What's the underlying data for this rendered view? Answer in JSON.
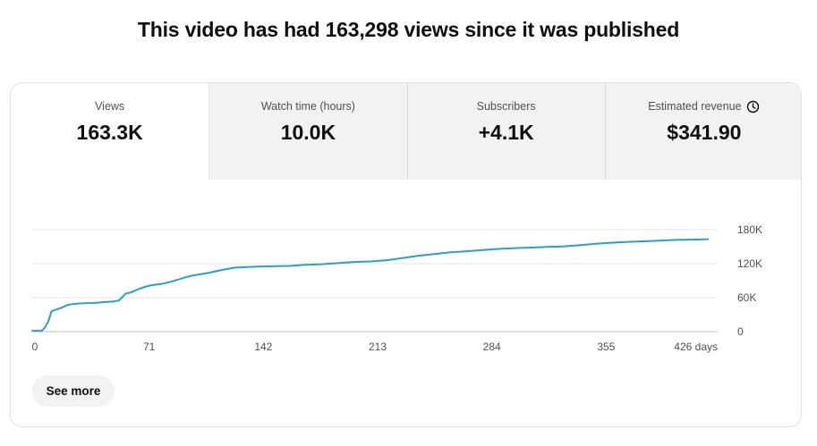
{
  "headline": "This video has had 163,298 views since it was published",
  "tabs": [
    {
      "label": "Views",
      "value": "163.3K",
      "active": true
    },
    {
      "label": "Watch time (hours)",
      "value": "10.0K",
      "active": false
    },
    {
      "label": "Subscribers",
      "value": "+4.1K",
      "active": false
    },
    {
      "label": "Estimated revenue",
      "value": "$341.90",
      "active": false,
      "icon": "clock-icon"
    }
  ],
  "chart_data": {
    "type": "line",
    "title": "",
    "xlabel": "",
    "ylabel": "",
    "xlim": [
      0,
      426
    ],
    "ylim": [
      0,
      180000
    ],
    "x_ticks": [
      {
        "value": 0,
        "label": "0"
      },
      {
        "value": 71,
        "label": "71"
      },
      {
        "value": 142,
        "label": "142"
      },
      {
        "value": 213,
        "label": "213"
      },
      {
        "value": 284,
        "label": "284"
      },
      {
        "value": 355,
        "label": "355"
      },
      {
        "value": 426,
        "label": "426 days"
      }
    ],
    "y_ticks": [
      {
        "value": 0,
        "label": "0"
      },
      {
        "value": 60000,
        "label": "60K"
      },
      {
        "value": 120000,
        "label": "120K"
      },
      {
        "value": 180000,
        "label": "180K"
      }
    ],
    "grid": true,
    "color": "#2e9fbf",
    "series": [
      {
        "name": "",
        "x": [
          0,
          6,
          8,
          10,
          12,
          14,
          18,
          22,
          26,
          32,
          38,
          44,
          50,
          54,
          56,
          58,
          62,
          66,
          70,
          74,
          80,
          86,
          92,
          98,
          104,
          110,
          118,
          126,
          140,
          160,
          170,
          180,
          190,
          200,
          210,
          220,
          230,
          240,
          250,
          260,
          270,
          280,
          290,
          300,
          310,
          320,
          330,
          340,
          350,
          360,
          370,
          380,
          390,
          400,
          410,
          420
        ],
        "y": [
          1500,
          1500,
          8000,
          18000,
          36000,
          38000,
          42000,
          47000,
          49000,
          50000,
          50500,
          52000,
          53000,
          55000,
          61000,
          67000,
          70000,
          75000,
          79000,
          82000,
          84000,
          88000,
          93000,
          98000,
          101000,
          104000,
          109000,
          113000,
          115000,
          116000,
          118000,
          119000,
          121000,
          123000,
          124000,
          126000,
          130000,
          134000,
          137000,
          140000,
          142000,
          144000,
          146000,
          147500,
          148500,
          149500,
          150500,
          152500,
          155000,
          157000,
          158500,
          159500,
          160500,
          162000,
          162500,
          163298
        ]
      }
    ]
  },
  "see_more_label": "See more"
}
